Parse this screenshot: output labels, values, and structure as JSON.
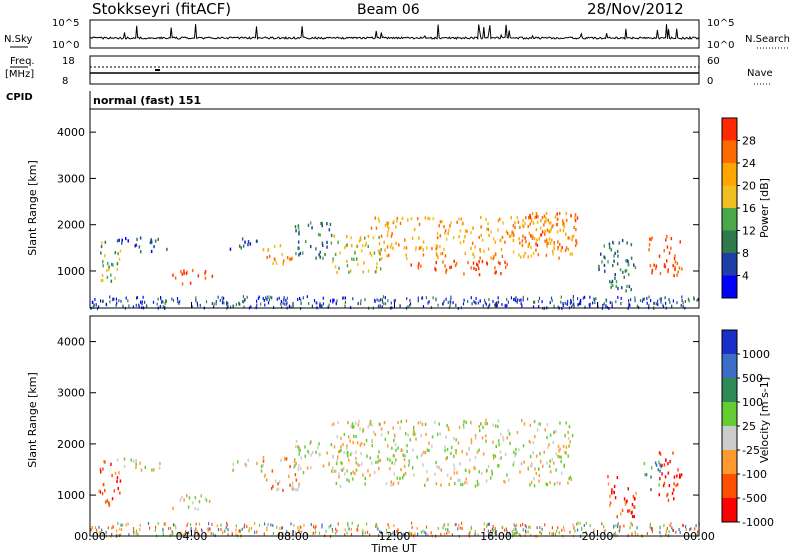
{
  "header": {
    "station": "Stokkseyri (fitACF)",
    "beam": "Beam 06",
    "date": "28/Nov/2012"
  },
  "top_panel": {
    "left_label": "N.Sky",
    "right_label": "N.Search",
    "left_ticks": [
      "10^5",
      "10^0"
    ],
    "right_ticks": [
      "10^5",
      "10^0"
    ]
  },
  "freq_panel": {
    "left_label_1": "Freq.",
    "left_label_2": "[MHz]",
    "right_label": "Nave",
    "left_ticks": [
      "18",
      "8"
    ],
    "right_ticks": [
      "60",
      "0"
    ]
  },
  "cpid": {
    "label": "CPID",
    "value": "normal (fast) 151"
  },
  "colors": {
    "power": [
      "#0000ff",
      "#1f3fa6",
      "#2f7a4a",
      "#4aa84a",
      "#f0c020",
      "#ffa500",
      "#ff6a00",
      "#ff2a00"
    ],
    "velocity": [
      "#ff0000",
      "#ff5000",
      "#ff9a30",
      "#cccccc",
      "#66cc33",
      "#2e8b57",
      "#3c6ec8",
      "#1a2ec8"
    ],
    "ground_scatter": "#bbbbbb"
  },
  "chart_data": [
    {
      "type": "heatmap",
      "name": "power",
      "xlabel": "",
      "ylabel": "Slant Range [km]",
      "xlim": [
        "00:00",
        "24:00"
      ],
      "ylim": [
        200,
        4500
      ],
      "yticks": [
        "1000",
        "2000",
        "3000",
        "4000"
      ],
      "colorbar": {
        "label": "Power [dB]",
        "ticks": [
          "4",
          "8",
          "12",
          "16",
          "20",
          "24",
          "28"
        ]
      },
      "regions": [
        {
          "t0": 0.3,
          "t1": 1.2,
          "r0": 800,
          "r1": 1700,
          "level": 3
        },
        {
          "t0": 1.0,
          "t1": 3.0,
          "r0": 1450,
          "r1": 1750,
          "level": 1
        },
        {
          "t0": 3.2,
          "t1": 4.8,
          "r0": 750,
          "r1": 1050,
          "level": 7
        },
        {
          "t0": 5.5,
          "t1": 6.8,
          "r0": 1500,
          "r1": 1750,
          "level": 1
        },
        {
          "t0": 6.8,
          "t1": 8.0,
          "r0": 1150,
          "r1": 1600,
          "level": 5
        },
        {
          "t0": 8.0,
          "t1": 9.5,
          "r0": 1300,
          "r1": 2100,
          "level": 2
        },
        {
          "t0": 9.5,
          "t1": 11.5,
          "r0": 1000,
          "r1": 1800,
          "level": 4
        },
        {
          "t0": 11.0,
          "t1": 19.0,
          "r0": 1300,
          "r1": 2200,
          "level": 5
        },
        {
          "t0": 12.5,
          "t1": 16.5,
          "r0": 950,
          "r1": 1250,
          "level": 7
        },
        {
          "t0": 17.0,
          "t1": 19.2,
          "r0": 1500,
          "r1": 2300,
          "level": 6
        },
        {
          "t0": 20.0,
          "t1": 21.5,
          "r0": 600,
          "r1": 1700,
          "level": 2
        },
        {
          "t0": 22.0,
          "t1": 23.3,
          "r0": 900,
          "r1": 1800,
          "level": 7
        }
      ]
    },
    {
      "type": "heatmap",
      "name": "velocity",
      "xlabel": "Time UT",
      "ylabel": "Slant Range [km]",
      "xlim": [
        "00:00",
        "24:00"
      ],
      "ylim": [
        200,
        4500
      ],
      "xticks": [
        "00:00",
        "04:00",
        "08:00",
        "12:00",
        "16:00",
        "20:00",
        "00:00"
      ],
      "yticks": [
        "1000",
        "2000",
        "3000",
        "4000"
      ],
      "colorbar": {
        "label": "Velocity [m s-1]",
        "ticks": [
          "1000",
          "500",
          "100",
          "25",
          "-25",
          "-100",
          "-500",
          "-1000"
        ]
      },
      "regions": [
        {
          "t0": 0.3,
          "t1": 1.2,
          "r0": 800,
          "r1": 1700,
          "level": 1
        },
        {
          "t0": 1.0,
          "t1": 2.8,
          "r0": 1500,
          "r1": 1750,
          "level": 3
        },
        {
          "t0": 3.2,
          "t1": 4.8,
          "r0": 750,
          "r1": 1050,
          "level": 3
        },
        {
          "t0": 5.5,
          "t1": 6.8,
          "r0": 1500,
          "r1": 1750,
          "level": 3
        },
        {
          "t0": 6.8,
          "t1": 8.3,
          "r0": 1100,
          "r1": 1800,
          "level": 2
        },
        {
          "t0": 8.0,
          "t1": 9.5,
          "r0": 1400,
          "r1": 2100,
          "level": 3
        },
        {
          "t0": 9.5,
          "t1": 19.0,
          "r0": 1200,
          "r1": 2500,
          "level": 3
        },
        {
          "t0": 20.2,
          "t1": 21.5,
          "r0": 600,
          "r1": 1400,
          "level": 1
        },
        {
          "t0": 21.8,
          "t1": 22.5,
          "r0": 1100,
          "r1": 1700,
          "level": 5
        },
        {
          "t0": 22.3,
          "t1": 23.3,
          "r0": 900,
          "r1": 1900,
          "level": 0
        }
      ]
    }
  ]
}
